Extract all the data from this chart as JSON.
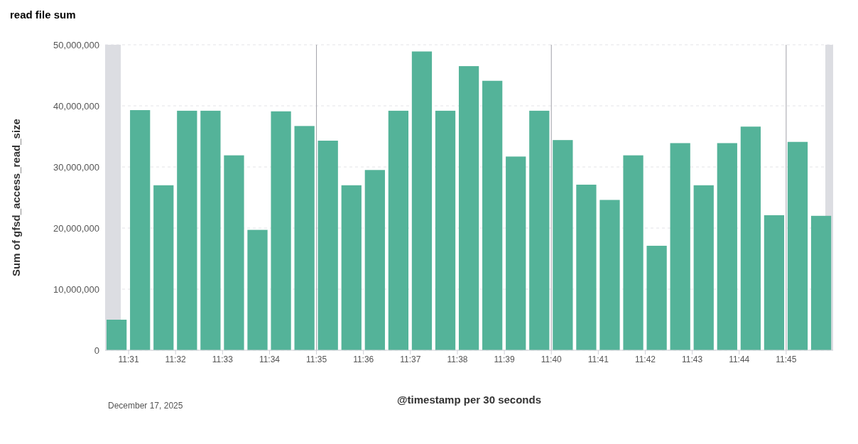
{
  "chart_data": {
    "type": "bar",
    "title": "read file sum",
    "xlabel": "@timestamp per 30 seconds",
    "ylabel": "Sum of gfsd_access_read_size",
    "x": [
      11.5125,
      11.520833,
      11.529167,
      11.5375,
      11.545833,
      11.554167,
      11.5625,
      11.570833,
      11.579167,
      11.5875,
      11.595833,
      11.604167,
      11.6125,
      11.620833,
      11.629167,
      11.6375,
      11.645833,
      11.654167,
      11.6625,
      11.670833,
      11.679167,
      11.6875,
      11.695833,
      11.704167,
      11.7125,
      11.720833,
      11.729167,
      11.7375,
      11.745833,
      11.754167,
      11.7625
    ],
    "values": [
      5000000,
      39300000,
      27000000,
      39200000,
      39200000,
      31900000,
      19700000,
      39100000,
      36700000,
      34300000,
      27000000,
      29500000,
      39200000,
      48900000,
      39200000,
      46500000,
      44100000,
      31700000,
      39200000,
      34400000,
      27100000,
      24600000,
      31900000,
      17100000,
      33900000,
      27000000,
      33900000,
      36600000,
      22100000,
      34100000,
      22000000
    ],
    "color": "#54b399",
    "xlim": [
      11.508333,
      11.766667
    ],
    "xticks": [
      {
        "value": 11.516667,
        "label": "11:31"
      },
      {
        "value": 11.533333,
        "label": "11:32"
      },
      {
        "value": 11.55,
        "label": "11:33"
      },
      {
        "value": 11.566667,
        "label": "11:34"
      },
      {
        "value": 11.583333,
        "label": "11:35"
      },
      {
        "value": 11.6,
        "label": "11:36"
      },
      {
        "value": 11.616667,
        "label": "11:37"
      },
      {
        "value": 11.633333,
        "label": "11:38"
      },
      {
        "value": 11.65,
        "label": "11:39"
      },
      {
        "value": 11.666667,
        "label": "11:40"
      },
      {
        "value": 11.683333,
        "label": "11:41"
      },
      {
        "value": 11.7,
        "label": "11:42"
      },
      {
        "value": 11.716667,
        "label": "11:43"
      },
      {
        "value": 11.733333,
        "label": "11:44"
      },
      {
        "value": 11.75,
        "label": "11:45"
      }
    ],
    "ylim": [
      0,
      50000000
    ],
    "yticks": [
      {
        "value": 0,
        "label": "0"
      },
      {
        "value": 10000000,
        "label": "10,000,000"
      },
      {
        "value": 20000000,
        "label": "20,000,000"
      },
      {
        "value": 30000000,
        "label": "30,000,000"
      },
      {
        "value": 40000000,
        "label": "40,000,000"
      },
      {
        "value": 50000000,
        "label": "50,000,000"
      }
    ],
    "grid": "y",
    "ref_lines": [
      {
        "axis": "x",
        "value": 11.583333,
        "color": "#a0a0a8"
      },
      {
        "axis": "x",
        "value": 11.666667,
        "color": "#a0a0a8"
      },
      {
        "axis": "x",
        "value": 11.75,
        "color": "#a0a0a8"
      }
    ],
    "bands": [
      {
        "axis": "x",
        "from": 11.508333,
        "to": 11.513889,
        "color": "#dcdde2"
      },
      {
        "axis": "x",
        "from": 11.763889,
        "to": 11.766667,
        "color": "#dcdde2"
      }
    ],
    "annotations": [
      "December 17, 2025"
    ]
  }
}
